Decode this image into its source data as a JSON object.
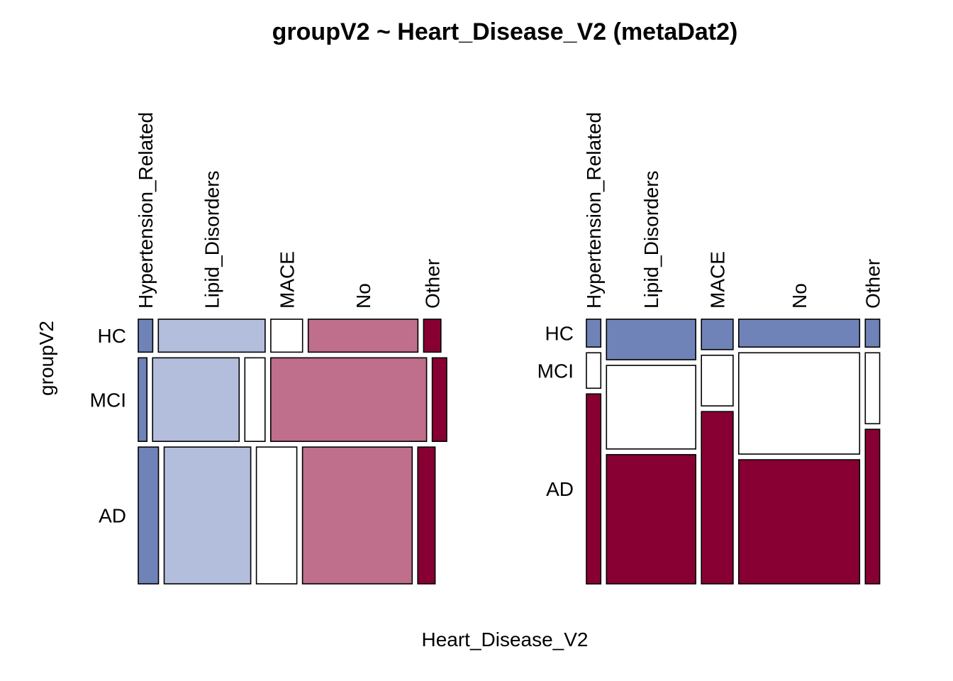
{
  "chart_data": {
    "type": "mosaic",
    "title": "groupV2 ~ Heart_Disease_V2 (metaDat2)",
    "xlabel": "Heart_Disease_V2",
    "ylabel": "groupV2",
    "x_categories": [
      "Hypertension_Related",
      "Lipid_Disorders",
      "MACE",
      "No",
      "Other"
    ],
    "y_categories": [
      "HC",
      "MCI",
      "AD"
    ],
    "colors": {
      "dark_blue": "#6F83B8",
      "light_blue": "#B3BEDC",
      "white": "#FFFFFF",
      "light_red": "#BF6E8C",
      "dark_red": "#880033"
    },
    "panels": [
      {
        "orientation": "rows",
        "description_note": "Left panel: rows = groupV2, row height = marginal proportion of groupV2; columns = Heart_Disease_V2 share within each group",
        "row_fractions": [
          0.13,
          0.33,
          0.54
        ],
        "cells": {
          "HC": [
            0.05,
            0.37,
            0.11,
            0.38,
            0.06
          ],
          "MCI": [
            0.03,
            0.3,
            0.07,
            0.54,
            0.05
          ],
          "AD": [
            0.07,
            0.3,
            0.14,
            0.38,
            0.06
          ]
        },
        "fills": {
          "HC": [
            "dark_blue",
            "light_blue",
            "white",
            "light_red",
            "dark_red"
          ],
          "MCI": [
            "dark_blue",
            "light_blue",
            "white",
            "light_red",
            "dark_red"
          ],
          "AD": [
            "dark_blue",
            "light_blue",
            "white",
            "light_red",
            "dark_red"
          ]
        }
      },
      {
        "orientation": "columns",
        "description_note": "Right panel: columns = Heart_Disease_V2 (width = marginal proportion), stacked groupV2 share within each column",
        "col_fractions": [
          0.05,
          0.31,
          0.11,
          0.42,
          0.05
        ],
        "cells": {
          "Hypertension_Related": [
            0.11,
            0.14,
            0.75
          ],
          "Lipid_Disorders": [
            0.16,
            0.33,
            0.51
          ],
          "MACE": [
            0.12,
            0.2,
            0.68
          ],
          "No": [
            0.11,
            0.4,
            0.49
          ],
          "Other": [
            0.11,
            0.28,
            0.61
          ]
        },
        "fills": {
          "Hypertension_Related": [
            "dark_blue",
            "white",
            "dark_red"
          ],
          "Lipid_Disorders": [
            "dark_blue",
            "white",
            "dark_red"
          ],
          "MACE": [
            "dark_blue",
            "white",
            "dark_red"
          ],
          "No": [
            "dark_blue",
            "white",
            "dark_red"
          ],
          "Other": [
            "dark_blue",
            "white",
            "dark_red"
          ]
        }
      }
    ]
  }
}
